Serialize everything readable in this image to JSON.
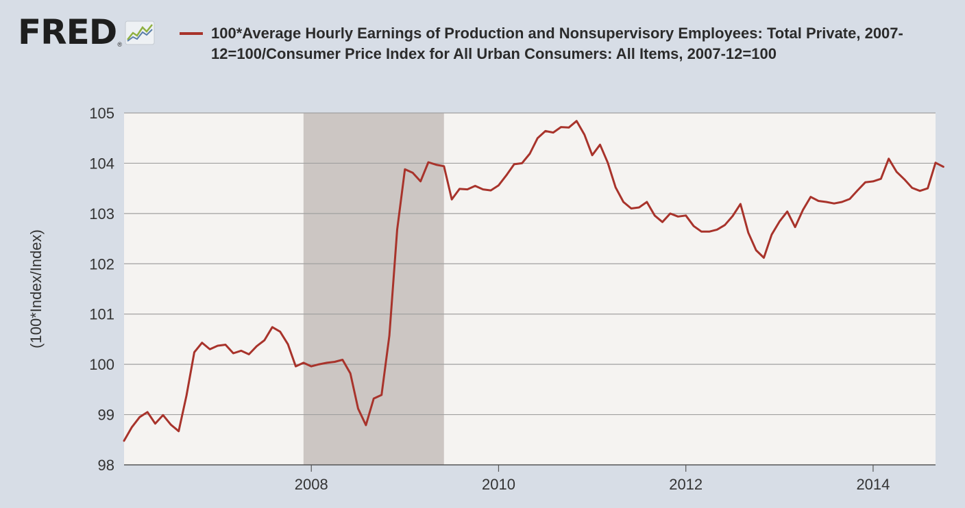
{
  "logo": {
    "text": "FRED",
    "reg": "®"
  },
  "colors": {
    "line": "#a8332b",
    "recession": "#ccc6c3",
    "plot_bg": "#f5f3f1",
    "grid": "#a0a0a0"
  },
  "chart_data": {
    "type": "line",
    "title": "100*Average Hourly Earnings of Production and Nonsupervisory Employees: Total Private, 2007-12=100/Consumer Price Index for All Urban Consumers: All Items, 2007-12=100",
    "ylabel": "(100*Index/Index)",
    "xlabel": "",
    "ylim": [
      98,
      105
    ],
    "xlim": [
      "2006-01",
      "2014-09"
    ],
    "yticks": [
      98,
      99,
      100,
      101,
      102,
      103,
      104,
      105
    ],
    "xticks": [
      "2008",
      "2010",
      "2012",
      "2014"
    ],
    "recessions": [
      {
        "start": "2007-12",
        "end": "2009-06"
      }
    ],
    "grid": true,
    "series": [
      {
        "name": "100*Average Hourly Earnings of Production and Nonsupervisory Employees: Total Private, 2007-12=100/Consumer Price Index for All Urban Consumers: All Items, 2007-12=100",
        "start": "2006-01",
        "frequency": "monthly",
        "values": [
          98.48,
          98.75,
          98.95,
          99.05,
          98.82,
          98.99,
          98.8,
          98.67,
          99.38,
          100.24,
          100.43,
          100.3,
          100.37,
          100.39,
          100.22,
          100.27,
          100.2,
          100.36,
          100.48,
          100.74,
          100.65,
          100.4,
          99.96,
          100.03,
          99.96,
          100.0,
          100.03,
          100.05,
          100.09,
          99.82,
          99.12,
          98.79,
          99.32,
          99.39,
          100.57,
          102.68,
          103.88,
          103.81,
          103.64,
          104.02,
          103.97,
          103.94,
          103.28,
          103.49,
          103.48,
          103.55,
          103.48,
          103.46,
          103.56,
          103.76,
          103.98,
          104.0,
          104.19,
          104.5,
          104.64,
          104.61,
          104.72,
          104.71,
          104.84,
          104.57,
          104.16,
          104.37,
          104.01,
          103.52,
          103.23,
          103.1,
          103.12,
          103.23,
          102.96,
          102.83,
          103.0,
          102.94,
          102.96,
          102.75,
          102.64,
          102.64,
          102.68,
          102.77,
          102.95,
          103.19,
          102.62,
          102.27,
          102.12,
          102.58,
          102.84,
          103.04,
          102.73,
          103.07,
          103.33,
          103.25,
          103.23,
          103.2,
          103.23,
          103.29,
          103.46,
          103.62,
          103.64,
          103.69,
          104.09,
          103.83,
          103.68,
          103.51,
          103.45,
          103.5,
          104.01,
          103.93
        ]
      }
    ]
  }
}
